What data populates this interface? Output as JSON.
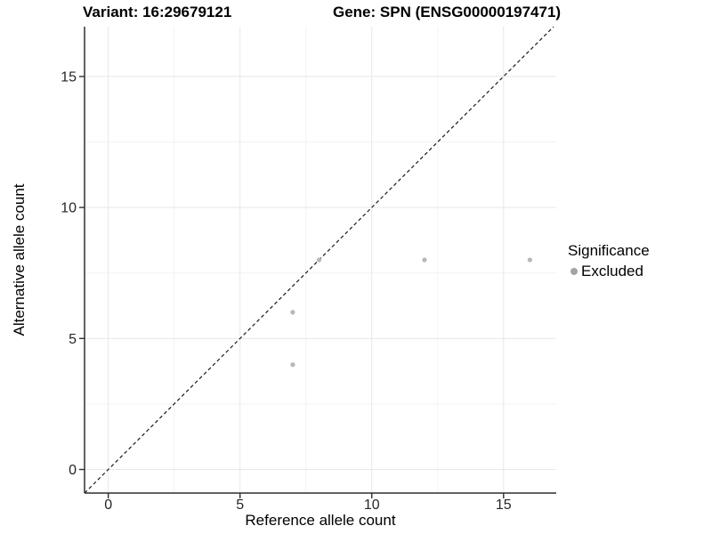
{
  "figure": {
    "background": "#ffffff"
  },
  "chart_data": {
    "type": "scatter",
    "titles": {
      "variant": "Variant: 16:29679121",
      "gene": "Gene: SPN (ENSG00000197471)"
    },
    "xlabel": "Reference allele count",
    "ylabel": "Alternative allele count",
    "xlim": [
      -0.9,
      17.0
    ],
    "ylim": [
      -0.9,
      16.9
    ],
    "x_major_ticks": [
      0,
      5,
      10,
      15
    ],
    "y_major_ticks": [
      0,
      5,
      10,
      15
    ],
    "x_minor_ticks": [
      2.5,
      7.5,
      12.5
    ],
    "y_minor_ticks": [
      2.5,
      7.5,
      12.5
    ],
    "grid": true,
    "points": [
      {
        "x": 7,
        "y": 4,
        "significance": "Excluded"
      },
      {
        "x": 7,
        "y": 6,
        "significance": "Excluded"
      },
      {
        "x": 8,
        "y": 8,
        "significance": "Excluded"
      },
      {
        "x": 12,
        "y": 8,
        "significance": "Excluded"
      },
      {
        "x": 16,
        "y": 8,
        "significance": "Excluded"
      }
    ],
    "identity_line": {
      "style": "dashed",
      "equation": "y = x",
      "from": [
        -0.9,
        -0.9
      ],
      "to": [
        16.9,
        16.9
      ]
    },
    "legend": {
      "title": "Significance",
      "position": "right",
      "items": [
        {
          "label": "Excluded",
          "color": "#a3a3a3"
        }
      ]
    },
    "colors": {
      "point": "#b7b7b7",
      "grid_major": "#e7e7e7",
      "grid_minor": "#f2f2f2",
      "axis_line": "#2f2f2f",
      "tick_text": "#262626",
      "identity_line": "#1a1a1a"
    }
  }
}
